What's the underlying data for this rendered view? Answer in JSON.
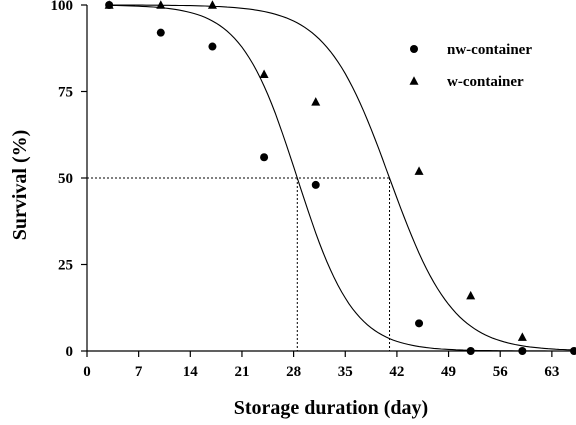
{
  "chart_data": {
    "type": "scatter",
    "xlabel": "Storage duration (day)",
    "ylabel": "Survival (%)",
    "xlim": [
      0,
      66
    ],
    "ylim": [
      0,
      100
    ],
    "x_ticks": [
      "0",
      "7",
      "14",
      "21",
      "28",
      "35",
      "42",
      "49",
      "56",
      "63"
    ],
    "y_ticks": [
      "0",
      "25",
      "50",
      "75",
      "100"
    ],
    "legend_position": "top-right",
    "series": [
      {
        "name": "nw-container",
        "marker": "circle",
        "x": [
          3,
          10,
          17,
          24,
          31,
          45,
          52,
          59,
          66
        ],
        "y": [
          100,
          92,
          88,
          56,
          48,
          8,
          0,
          0,
          0
        ],
        "fit": {
          "model": "logistic",
          "midpoint_day": 28.5,
          "slope": 3.8
        }
      },
      {
        "name": "w-container",
        "marker": "triangle",
        "x": [
          3,
          10,
          17,
          24,
          31,
          45,
          52,
          59
        ],
        "y": [
          100,
          100,
          100,
          80,
          72,
          52,
          16,
          4
        ],
        "fit": {
          "model": "logistic",
          "midpoint_day": 41,
          "slope": 4.3
        }
      }
    ],
    "reference_lines": [
      {
        "type": "horizontal",
        "y": 50,
        "style": "dotted"
      },
      {
        "type": "vertical",
        "x": 28.5,
        "style": "dotted"
      },
      {
        "type": "vertical",
        "x": 41,
        "style": "dotted"
      }
    ]
  }
}
